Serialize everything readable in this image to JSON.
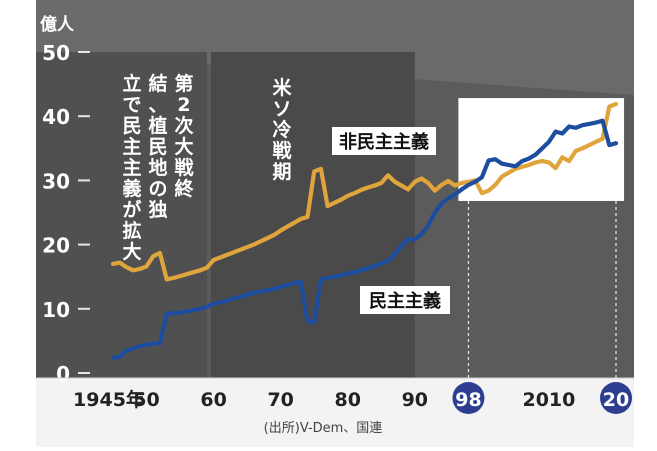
{
  "chart_data": {
    "type": "line",
    "unit_label": "億人",
    "xlim": [
      1945,
      2021
    ],
    "ylim": [
      0,
      50
    ],
    "y_ticks": [
      0,
      10,
      20,
      30,
      40,
      50
    ],
    "x_ticks": [
      {
        "value": 1945,
        "label": "1945年",
        "highlight": false
      },
      {
        "value": 1950,
        "label": "50",
        "highlight": false
      },
      {
        "value": 1960,
        "label": "60",
        "highlight": false
      },
      {
        "value": 1970,
        "label": "70",
        "highlight": false
      },
      {
        "value": 1980,
        "label": "80",
        "highlight": false
      },
      {
        "value": 1990,
        "label": "90",
        "highlight": false
      },
      {
        "value": 1998,
        "label": "98",
        "highlight": true
      },
      {
        "value": 2010,
        "label": "2010",
        "highlight": false
      },
      {
        "value": 2020,
        "label": "20",
        "highlight": true
      }
    ],
    "series": [
      {
        "name": "非民主主義",
        "color": "#e0a43c",
        "points": [
          [
            1945,
            17.0
          ],
          [
            1946,
            17.2
          ],
          [
            1947,
            16.5
          ],
          [
            1948,
            16.0
          ],
          [
            1949,
            16.2
          ],
          [
            1950,
            16.6
          ],
          [
            1951,
            18.2
          ],
          [
            1952,
            18.7
          ],
          [
            1953,
            14.6
          ],
          [
            1954,
            14.8
          ],
          [
            1955,
            15.1
          ],
          [
            1956,
            15.4
          ],
          [
            1957,
            15.7
          ],
          [
            1958,
            16.0
          ],
          [
            1959,
            16.4
          ],
          [
            1960,
            17.6
          ],
          [
            1961,
            18.0
          ],
          [
            1962,
            18.4
          ],
          [
            1963,
            18.8
          ],
          [
            1964,
            19.2
          ],
          [
            1965,
            19.6
          ],
          [
            1966,
            20.0
          ],
          [
            1967,
            20.5
          ],
          [
            1968,
            21.0
          ],
          [
            1969,
            21.5
          ],
          [
            1970,
            22.2
          ],
          [
            1971,
            22.8
          ],
          [
            1972,
            23.4
          ],
          [
            1973,
            24.0
          ],
          [
            1974,
            24.3
          ],
          [
            1975,
            31.4
          ],
          [
            1976,
            31.8
          ],
          [
            1977,
            26.0
          ],
          [
            1978,
            26.5
          ],
          [
            1979,
            27.0
          ],
          [
            1980,
            27.6
          ],
          [
            1981,
            28.0
          ],
          [
            1982,
            28.5
          ],
          [
            1983,
            28.9
          ],
          [
            1984,
            29.2
          ],
          [
            1985,
            29.6
          ],
          [
            1986,
            30.8
          ],
          [
            1987,
            29.8
          ],
          [
            1988,
            29.2
          ],
          [
            1989,
            28.6
          ],
          [
            1990,
            29.8
          ],
          [
            1991,
            30.3
          ],
          [
            1992,
            29.6
          ],
          [
            1993,
            28.4
          ],
          [
            1994,
            29.3
          ],
          [
            1995,
            29.9
          ],
          [
            1996,
            29.2
          ],
          [
            1997,
            29.6
          ],
          [
            1998,
            29.8
          ],
          [
            1999,
            30.0
          ],
          [
            2000,
            28.0
          ],
          [
            2001,
            28.4
          ],
          [
            2002,
            29.3
          ],
          [
            2003,
            30.6
          ],
          [
            2004,
            31.2
          ],
          [
            2005,
            31.8
          ],
          [
            2006,
            32.1
          ],
          [
            2007,
            32.4
          ],
          [
            2008,
            32.8
          ],
          [
            2009,
            33.0
          ],
          [
            2010,
            32.8
          ],
          [
            2011,
            31.9
          ],
          [
            2012,
            33.6
          ],
          [
            2013,
            33.0
          ],
          [
            2014,
            34.6
          ],
          [
            2015,
            35.0
          ],
          [
            2016,
            35.5
          ],
          [
            2017,
            36.0
          ],
          [
            2018,
            36.5
          ],
          [
            2019,
            41.5
          ],
          [
            2020,
            41.9
          ]
        ]
      },
      {
        "name": "民主主義",
        "color": "#1d4d9e",
        "points": [
          [
            1945,
            2.4
          ],
          [
            1946,
            2.5
          ],
          [
            1947,
            3.5
          ],
          [
            1948,
            3.8
          ],
          [
            1949,
            4.2
          ],
          [
            1950,
            4.4
          ],
          [
            1951,
            4.6
          ],
          [
            1952,
            4.6
          ],
          [
            1953,
            9.2
          ],
          [
            1954,
            9.3
          ],
          [
            1955,
            9.4
          ],
          [
            1956,
            9.6
          ],
          [
            1957,
            9.8
          ],
          [
            1958,
            10.0
          ],
          [
            1959,
            10.3
          ],
          [
            1960,
            10.8
          ],
          [
            1961,
            11.0
          ],
          [
            1962,
            11.3
          ],
          [
            1963,
            11.6
          ],
          [
            1964,
            11.9
          ],
          [
            1965,
            12.2
          ],
          [
            1966,
            12.5
          ],
          [
            1967,
            12.7
          ],
          [
            1968,
            12.9
          ],
          [
            1969,
            13.1
          ],
          [
            1970,
            13.4
          ],
          [
            1971,
            13.7
          ],
          [
            1972,
            14.0
          ],
          [
            1973,
            14.2
          ],
          [
            1974,
            8.1
          ],
          [
            1975,
            7.9
          ],
          [
            1976,
            14.6
          ],
          [
            1977,
            14.8
          ],
          [
            1978,
            15.0
          ],
          [
            1979,
            15.2
          ],
          [
            1980,
            15.5
          ],
          [
            1981,
            15.7
          ],
          [
            1982,
            16.0
          ],
          [
            1983,
            16.3
          ],
          [
            1984,
            16.7
          ],
          [
            1985,
            17.0
          ],
          [
            1986,
            17.5
          ],
          [
            1987,
            18.5
          ],
          [
            1988,
            19.8
          ],
          [
            1989,
            20.9
          ],
          [
            1990,
            20.8
          ],
          [
            1991,
            21.6
          ],
          [
            1992,
            23.0
          ],
          [
            1993,
            25.0
          ],
          [
            1994,
            26.4
          ],
          [
            1995,
            27.2
          ],
          [
            1996,
            27.8
          ],
          [
            1997,
            28.6
          ],
          [
            1998,
            29.3
          ],
          [
            1999,
            29.8
          ],
          [
            2000,
            30.5
          ],
          [
            2001,
            33.1
          ],
          [
            2002,
            33.3
          ],
          [
            2003,
            32.6
          ],
          [
            2004,
            32.4
          ],
          [
            2005,
            32.2
          ],
          [
            2006,
            33.0
          ],
          [
            2007,
            33.4
          ],
          [
            2008,
            34.0
          ],
          [
            2009,
            35.0
          ],
          [
            2010,
            36.0
          ],
          [
            2011,
            37.6
          ],
          [
            2012,
            37.3
          ],
          [
            2013,
            38.4
          ],
          [
            2014,
            38.2
          ],
          [
            2015,
            38.6
          ],
          [
            2016,
            38.8
          ],
          [
            2017,
            39.0
          ],
          [
            2018,
            39.3
          ],
          [
            2019,
            35.5
          ],
          [
            2020,
            35.8
          ]
        ]
      }
    ],
    "annotations": {
      "wwii": "第2次大戦終結、植民地の独立で民主主義が拡大",
      "cold_war": "米ソ冷戦期"
    },
    "source": "(出所)V-Dem、国連"
  }
}
